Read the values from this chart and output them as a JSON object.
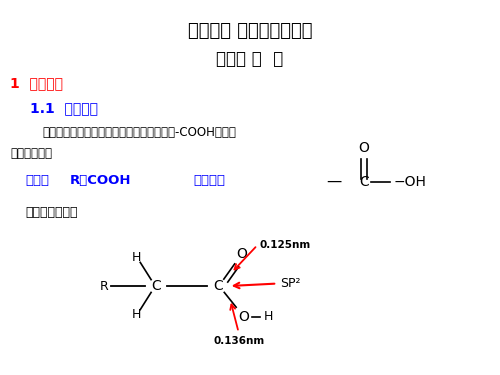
{
  "title1": "第十一章 羧酸及其衍生物",
  "title2": "第一节 羧  酸",
  "section1": "1  羧酸概述",
  "subsection1": "1.1  羧酸结构",
  "body_text1": "羧酸可以看作是烃分子中的氢原子被羧基（-COOH）所取",
  "body_text2": "代的化合物。",
  "label_acid": "羧酸：",
  "formula_acid": "R－COOH",
  "label_group": "官能团：",
  "struct_note": "羧酸结构特点：",
  "bg_color": "#ffffff",
  "title_color": "#000000",
  "section_color": "#ff0000",
  "subsection_color": "#0000ff",
  "blue_color": "#0000ff",
  "black_color": "#000000",
  "red_color": "#ff0000"
}
